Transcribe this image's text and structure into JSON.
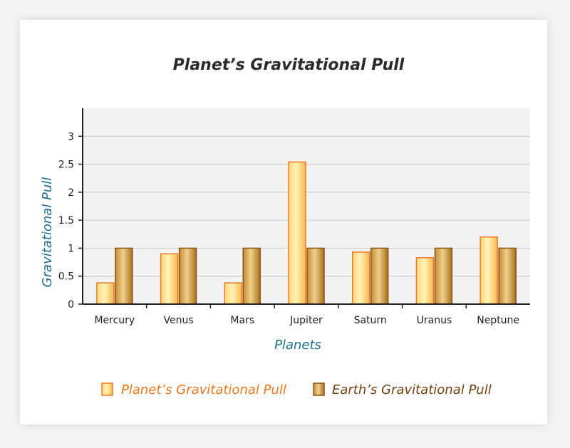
{
  "chart_data": {
    "type": "bar",
    "title": "Planet’s Gravitational Pull",
    "xlabel": "Planets",
    "ylabel": "Gravitational Pull",
    "categories": [
      "Mercury",
      "Venus",
      "Mars",
      "Jupiter",
      "Saturn",
      "Uranus",
      "Neptune"
    ],
    "series": [
      {
        "name": "Planet’s Gravitational Pull",
        "values": [
          0.38,
          0.9,
          0.38,
          2.54,
          0.93,
          0.83,
          1.2
        ]
      },
      {
        "name": "Earth’s Gravitational Pull",
        "values": [
          1,
          1,
          1,
          1,
          1,
          1,
          1
        ]
      }
    ],
    "yticks": [
      "0",
      "0.5",
      "1",
      "1.5",
      "2",
      "2.5",
      "3"
    ],
    "ylim": [
      0,
      3.5
    ],
    "grid": true,
    "legend_position": "bottom",
    "colors": {
      "planet_light": "#ffeeaa",
      "planet_mid": "#fcc658",
      "planet_edge": "#f07828",
      "earth_light": "#ecc87c",
      "earth_mid": "#b47a2a",
      "earth_edge": "#8a5818",
      "legend_planet_text": "#e8761c",
      "legend_earth_text": "#6e4012",
      "axis_title": "#1f6f8b",
      "plot_background": "#f3f3f3"
    }
  }
}
